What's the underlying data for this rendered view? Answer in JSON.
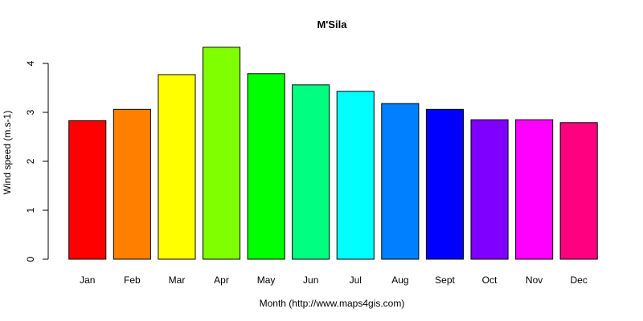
{
  "chart_data": {
    "type": "bar",
    "title": "M'Sila",
    "xlabel": "Month (http://www.maps4gis.com)",
    "ylabel": "Wind speed (m.s-1)",
    "categories": [
      "Jan",
      "Feb",
      "Mar",
      "Apr",
      "May",
      "Jun",
      "Jul",
      "Aug",
      "Sept",
      "Oct",
      "Nov",
      "Dec"
    ],
    "values": [
      2.83,
      3.06,
      3.77,
      4.33,
      3.79,
      3.56,
      3.43,
      3.18,
      3.06,
      2.85,
      2.85,
      2.79
    ],
    "colors": [
      "#FF0000",
      "#FF8000",
      "#FFFF00",
      "#80FF00",
      "#00FF00",
      "#00FF80",
      "#00FFFF",
      "#0080FF",
      "#0000FF",
      "#8000FF",
      "#FF00FF",
      "#FF0080"
    ],
    "ylim": [
      0,
      4
    ],
    "yticks": [
      0,
      1,
      2,
      3,
      4
    ],
    "grid": false,
    "legend": false
  }
}
